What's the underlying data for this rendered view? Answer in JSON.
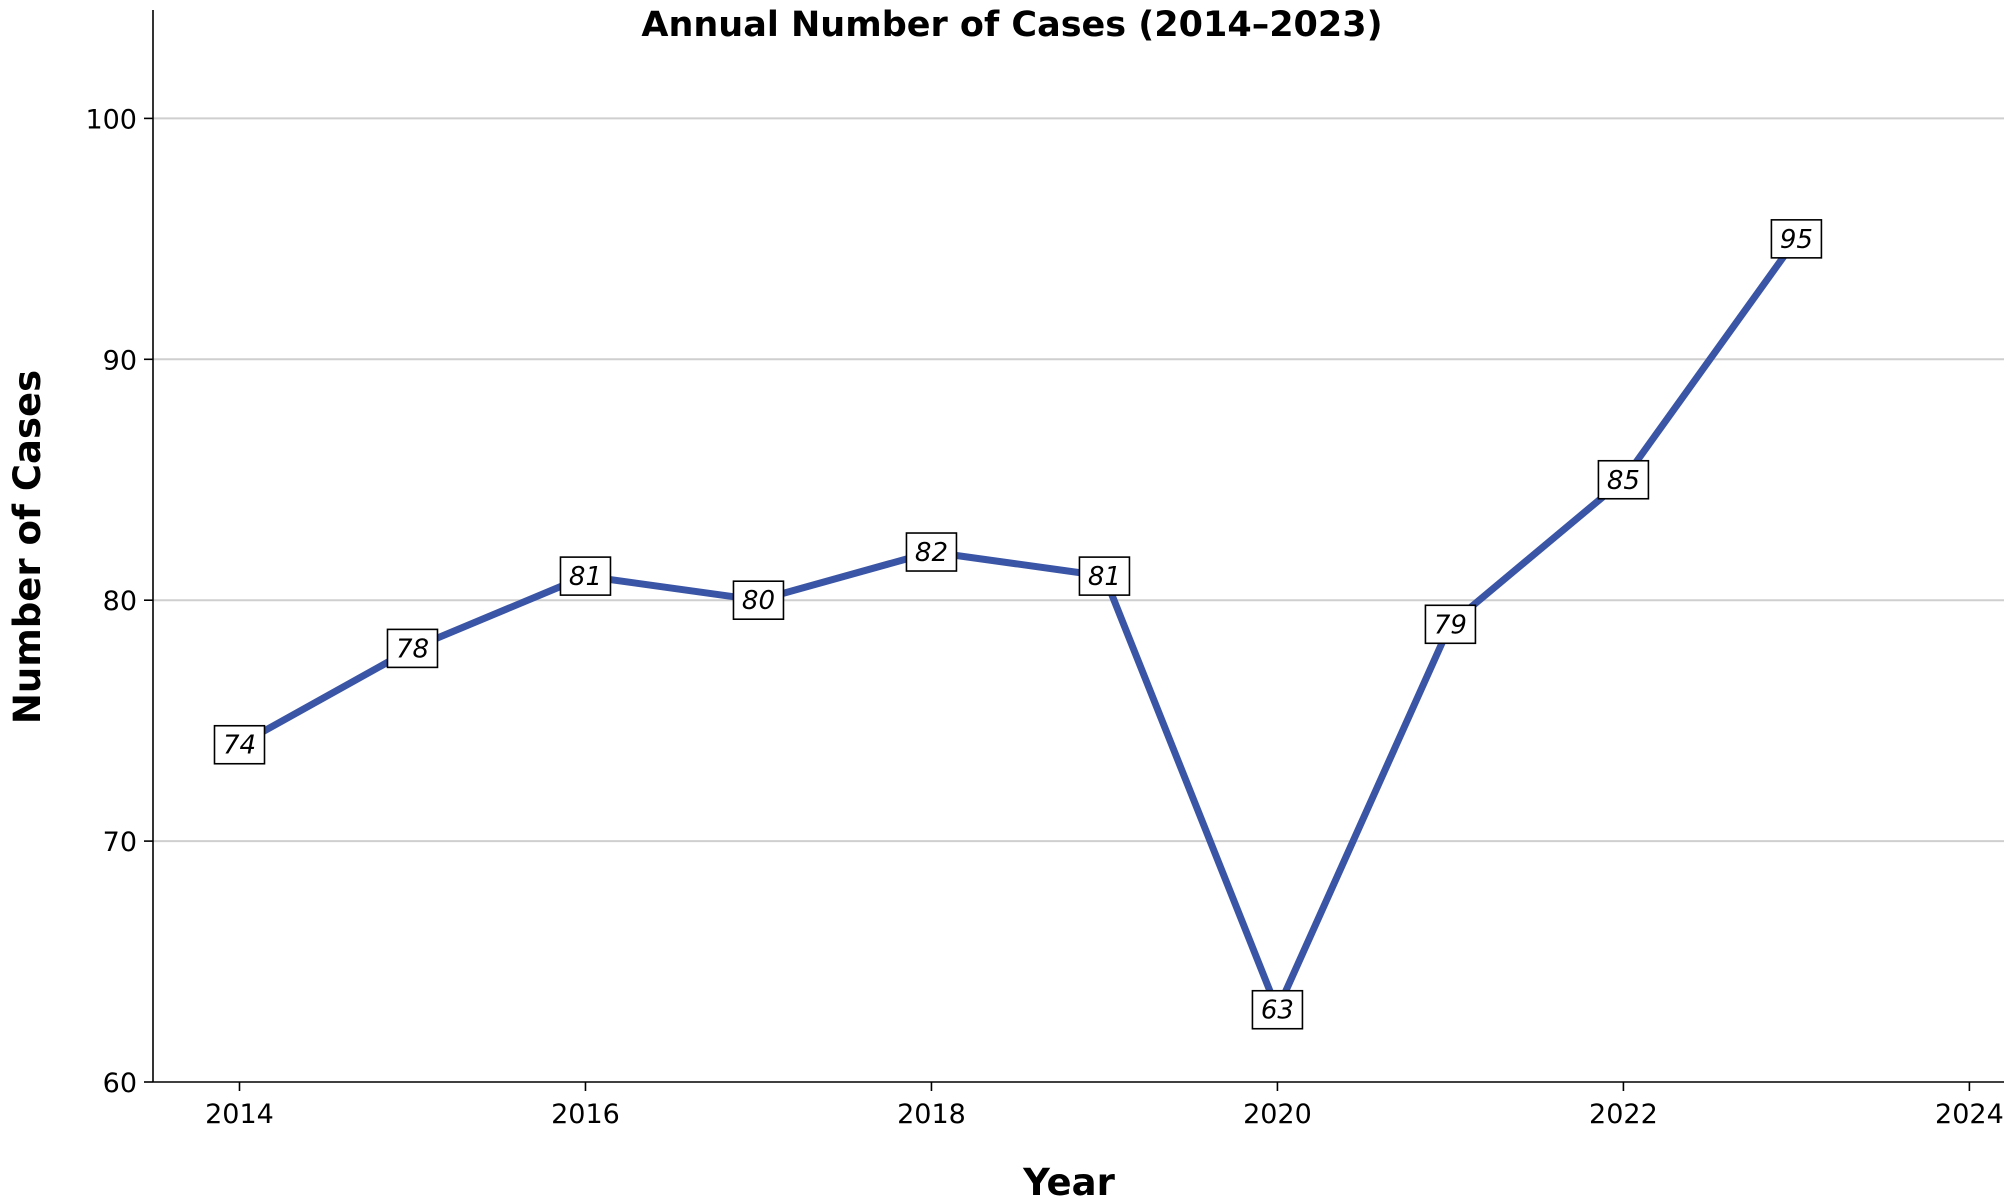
{
  "chart_data": {
    "type": "line",
    "title": "Annual Number of Cases (2014–2023)",
    "xlabel": "Year",
    "ylabel": "Number of Cases",
    "x": [
      2014,
      2015,
      2016,
      2017,
      2018,
      2019,
      2020,
      2021,
      2022,
      2023
    ],
    "series": [
      {
        "values": [
          74,
          78,
          81,
          80,
          82,
          81,
          63,
          79,
          85,
          95
        ],
        "color": "#3b55a6"
      }
    ],
    "xlim": [
      2013.5,
      2024.2
    ],
    "ylim": [
      60,
      104.5
    ],
    "x_ticks": [
      2014,
      2016,
      2018,
      2020,
      2022,
      2024
    ],
    "y_ticks": [
      60,
      70,
      80,
      90,
      100
    ],
    "x_tick_labels": [
      "2014",
      "2016",
      "2018",
      "2020",
      "2022",
      "2024"
    ],
    "y_tick_labels": [
      "60",
      "70",
      "80",
      "90",
      "100"
    ],
    "data_labels": [
      "74",
      "78",
      "81",
      "80",
      "82",
      "81",
      "63",
      "79",
      "85",
      "95"
    ],
    "grid": {
      "y": true,
      "x": false
    },
    "legend": "none"
  }
}
